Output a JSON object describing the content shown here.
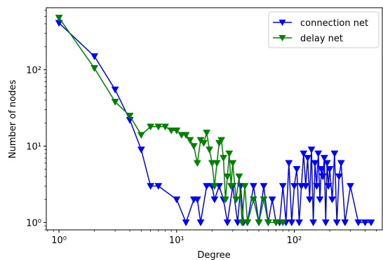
{
  "chart_data": {
    "type": "line",
    "xlabel": "Degree",
    "ylabel": "Number of nodes",
    "xscale": "log",
    "yscale": "log",
    "xlim": [
      0.78,
      560
    ],
    "ylim": [
      0.8,
      650
    ],
    "xticks": [
      {
        "value": 1,
        "label": "10⁰"
      },
      {
        "value": 10,
        "label": "10¹"
      },
      {
        "value": 100,
        "label": "10²"
      }
    ],
    "yticks": [
      {
        "value": 1,
        "label": "10⁰"
      },
      {
        "value": 10,
        "label": "10¹"
      },
      {
        "value": 100,
        "label": "10²"
      }
    ],
    "grid": false,
    "legend_position": "top-right",
    "marker": "triangle-down",
    "series": [
      {
        "name": "connection net",
        "color": "#0000ff",
        "x": [
          1,
          2,
          3,
          4,
          5,
          6,
          7,
          10,
          12,
          14,
          15,
          16,
          18,
          20,
          21,
          23,
          25,
          27,
          30,
          33,
          35,
          37,
          40,
          45,
          50,
          55,
          60,
          65,
          70,
          75,
          80,
          85,
          90,
          95,
          100,
          105,
          110,
          115,
          120,
          125,
          130,
          135,
          140,
          145,
          150,
          155,
          160,
          165,
          170,
          175,
          180,
          185,
          190,
          195,
          200,
          210,
          220,
          230,
          240,
          250,
          270,
          300,
          350,
          400,
          450
        ],
        "y": [
          410,
          150,
          55,
          22,
          9,
          3,
          3,
          2,
          1,
          2,
          2,
          1,
          3,
          3,
          2,
          3,
          2,
          1,
          3,
          1,
          3,
          1,
          1,
          3,
          1,
          3,
          1,
          2,
          1,
          1,
          3,
          1,
          6,
          1,
          3,
          5,
          1,
          3,
          8,
          3,
          7,
          2,
          9,
          1,
          6,
          3,
          8,
          2,
          5,
          4,
          7,
          1,
          6,
          3,
          5,
          2,
          8,
          1,
          4,
          6,
          1,
          3,
          1,
          1,
          1
        ]
      },
      {
        "name": "delay net",
        "color": "#008000",
        "x": [
          1,
          2,
          3,
          4,
          5,
          6,
          7,
          8,
          9,
          10,
          11,
          12,
          13,
          14,
          15,
          16,
          17,
          18,
          19,
          20,
          21,
          22,
          23,
          24,
          25,
          26,
          27,
          28,
          29,
          30,
          32,
          34,
          36,
          38,
          40,
          45,
          50,
          55,
          60,
          70,
          80
        ],
        "y": [
          480,
          105,
          38,
          25,
          14,
          18,
          18,
          18,
          16,
          16,
          14,
          14,
          12,
          10,
          6,
          12,
          11,
          15,
          9,
          6,
          3,
          6,
          11,
          12,
          7,
          2,
          4,
          8,
          3,
          6,
          2,
          4,
          1,
          3,
          1,
          2,
          1,
          2,
          1,
          1,
          1
        ]
      }
    ]
  }
}
